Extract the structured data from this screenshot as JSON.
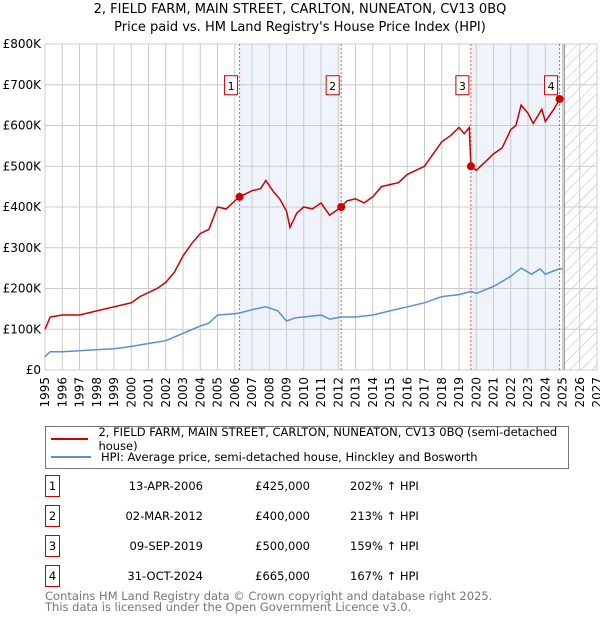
{
  "chart_data": {
    "type": "line",
    "title": "2, FIELD FARM, MAIN STREET, CARLTON, NUNEATON, CV13 0BQ",
    "subtitle": "Price paid vs. HM Land Registry's House Price Index (HPI)",
    "xlim": [
      1995,
      2027
    ],
    "ylim": [
      0,
      800000
    ],
    "x_ticks": [
      "1995",
      "1996",
      "1997",
      "1998",
      "1999",
      "2000",
      "2001",
      "2002",
      "2003",
      "2004",
      "2005",
      "2006",
      "2007",
      "2008",
      "2009",
      "2010",
      "2011",
      "2012",
      "2013",
      "2014",
      "2015",
      "2016",
      "2017",
      "2018",
      "2019",
      "2020",
      "2021",
      "2022",
      "2023",
      "2024",
      "2025",
      "2026",
      "2027"
    ],
    "y_ticks": [
      {
        "v": 0,
        "label": "£0"
      },
      {
        "v": 100000,
        "label": "£100K"
      },
      {
        "v": 200000,
        "label": "£200K"
      },
      {
        "v": 300000,
        "label": "£300K"
      },
      {
        "v": 400000,
        "label": "£400K"
      },
      {
        "v": 500000,
        "label": "£500K"
      },
      {
        "v": 600000,
        "label": "£600K"
      },
      {
        "v": 700000,
        "label": "£700K"
      },
      {
        "v": 800000,
        "label": "£800K"
      }
    ],
    "grid": true,
    "shaded_periods": [
      [
        2006.28,
        2012.17
      ],
      [
        2019.69,
        2024.83
      ]
    ],
    "forecast_from": 2025.1,
    "series": [
      {
        "name": "2, FIELD FARM, MAIN STREET, CARLTON, NUNEATON, CV13 0BQ (semi-detached house)",
        "color": "#cc0000",
        "x": [
          1995,
          1995.3,
          1996,
          1997,
          1998,
          1999,
          2000,
          2000.5,
          2001,
          2001.5,
          2002,
          2002.5,
          2003,
          2003.5,
          2004,
          2004.5,
          2005,
          2005.5,
          2006,
          2006.28,
          2007,
          2007.5,
          2007.8,
          2008.2,
          2008.6,
          2009,
          2009.2,
          2009.6,
          2010,
          2010.5,
          2011,
          2011.5,
          2012.17,
          2012.5,
          2013,
          2013.5,
          2014,
          2014.5,
          2015,
          2015.5,
          2016,
          2016.5,
          2017,
          2017.5,
          2018,
          2018.5,
          2019,
          2019.3,
          2019.6,
          2019.69,
          2020,
          2020.5,
          2021,
          2021.5,
          2022,
          2022.3,
          2022.6,
          2023,
          2023.3,
          2023.8,
          2024,
          2024.5,
          2024.83,
          2025
        ],
        "y": [
          100000,
          130000,
          135000,
          135000,
          145000,
          155000,
          165000,
          180000,
          190000,
          200000,
          215000,
          240000,
          280000,
          310000,
          335000,
          345000,
          400000,
          395000,
          415000,
          425000,
          440000,
          445000,
          465000,
          440000,
          420000,
          390000,
          350000,
          385000,
          400000,
          395000,
          410000,
          380000,
          400000,
          415000,
          420000,
          410000,
          425000,
          450000,
          455000,
          460000,
          480000,
          490000,
          500000,
          530000,
          560000,
          575000,
          595000,
          580000,
          595000,
          500000,
          490000,
          510000,
          530000,
          545000,
          590000,
          600000,
          650000,
          630000,
          605000,
          640000,
          610000,
          640000,
          665000,
          670000
        ]
      },
      {
        "name": "HPI: Average price, semi-detached house, Hinckley and Bosworth",
        "color": "#5b8fd6",
        "x": [
          1995,
          1995.3,
          1996,
          1997,
          1998,
          1999,
          2000,
          2001,
          2002,
          2003,
          2004,
          2004.5,
          2005,
          2006,
          2006.3,
          2007,
          2007.8,
          2008.5,
          2009,
          2009.5,
          2010,
          2011,
          2011.5,
          2012.2,
          2013,
          2014,
          2015,
          2016,
          2017,
          2018,
          2019,
          2019.7,
          2020,
          2021,
          2022,
          2022.6,
          2023.2,
          2023.7,
          2024,
          2024.8,
          2025
        ],
        "y": [
          33000,
          45000,
          45000,
          47000,
          50000,
          52000,
          58000,
          65000,
          72000,
          90000,
          108000,
          115000,
          135000,
          138000,
          140000,
          148000,
          155000,
          145000,
          120000,
          128000,
          130000,
          135000,
          125000,
          130000,
          130000,
          135000,
          145000,
          155000,
          165000,
          180000,
          185000,
          193000,
          188000,
          205000,
          230000,
          250000,
          235000,
          248000,
          235000,
          248000,
          248000
        ]
      }
    ],
    "sales": [
      {
        "label": "1",
        "x": 2006.28,
        "y": 425000
      },
      {
        "label": "2",
        "x": 2012.17,
        "y": 400000
      },
      {
        "label": "3",
        "x": 2019.69,
        "y": 500000
      },
      {
        "label": "4",
        "x": 2024.83,
        "y": 665000
      }
    ]
  },
  "legend": {
    "property": "2, FIELD FARM, MAIN STREET, CARLTON, NUNEATON, CV13 0BQ (semi-detached house)",
    "hpi": "HPI: Average price, semi-detached house, Hinckley and Bosworth"
  },
  "transactions": [
    {
      "num": "1",
      "date": "13-APR-2006",
      "price": "£425,000",
      "hpi": "202% ↑ HPI"
    },
    {
      "num": "2",
      "date": "02-MAR-2012",
      "price": "£400,000",
      "hpi": "213% ↑ HPI"
    },
    {
      "num": "3",
      "date": "09-SEP-2019",
      "price": "£500,000",
      "hpi": "159% ↑ HPI"
    },
    {
      "num": "4",
      "date": "31-OCT-2024",
      "price": "£665,000",
      "hpi": "167% ↑ HPI"
    }
  ],
  "footer": {
    "line1": "Contains HM Land Registry data © Crown copyright and database right 2025.",
    "line2": "This data is licensed under the Open Government Licence v3.0."
  }
}
